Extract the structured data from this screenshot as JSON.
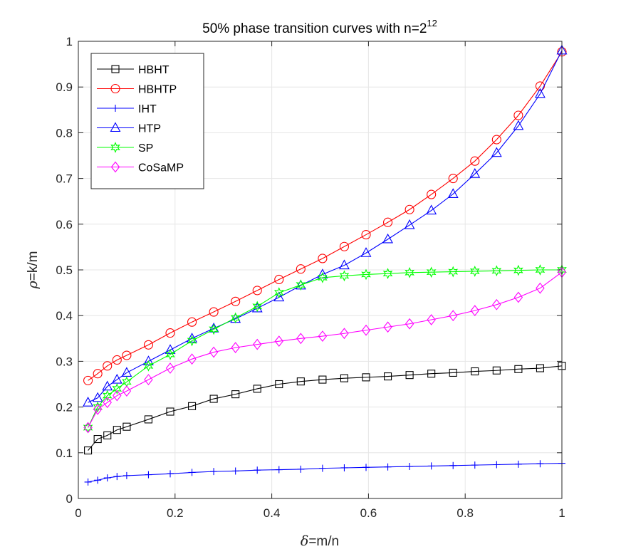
{
  "chart_data": {
    "type": "line",
    "title": "50% phase transition curves with n=2",
    "title_superscript": "12",
    "xlabel_symbol": "δ",
    "xlabel_rest": "=m/n",
    "ylabel_symbol": "ρ",
    "ylabel_rest": "=k/m",
    "xlim": [
      0,
      1
    ],
    "ylim": [
      0,
      1
    ],
    "xticks": [
      0,
      0.2,
      0.4,
      0.6,
      0.8,
      1
    ],
    "xtick_labels": [
      "0",
      "0.2",
      "0.4",
      "0.6",
      "0.8",
      "1"
    ],
    "yticks": [
      0,
      0.1,
      0.2,
      0.3,
      0.4,
      0.5,
      0.6,
      0.7,
      0.8,
      0.9,
      1
    ],
    "ytick_labels": [
      "0",
      "0.1",
      "0.2",
      "0.3",
      "0.4",
      "0.5",
      "0.6",
      "0.7",
      "0.8",
      "0.9",
      "1"
    ],
    "grid": true,
    "legend_position": "top-left",
    "x": [
      0.02,
      0.04,
      0.06,
      0.08,
      0.1,
      0.145,
      0.19,
      0.235,
      0.28,
      0.325,
      0.37,
      0.415,
      0.46,
      0.505,
      0.55,
      0.595,
      0.64,
      0.685,
      0.73,
      0.775,
      0.82,
      0.865,
      0.91,
      0.955,
      1.0
    ],
    "series": [
      {
        "name": "HBHT",
        "color": "#000000",
        "marker": "square",
        "values": [
          0.105,
          0.13,
          0.138,
          0.15,
          0.157,
          0.173,
          0.19,
          0.202,
          0.218,
          0.228,
          0.24,
          0.25,
          0.256,
          0.26,
          0.263,
          0.265,
          0.267,
          0.27,
          0.273,
          0.275,
          0.278,
          0.28,
          0.283,
          0.285,
          0.29
        ]
      },
      {
        "name": "HBHTP",
        "color": "#ff0000",
        "marker": "circle",
        "values": [
          0.258,
          0.273,
          0.29,
          0.303,
          0.313,
          0.336,
          0.362,
          0.386,
          0.408,
          0.431,
          0.455,
          0.479,
          0.502,
          0.525,
          0.551,
          0.577,
          0.604,
          0.632,
          0.665,
          0.7,
          0.738,
          0.785,
          0.838,
          0.902,
          0.977
        ]
      },
      {
        "name": "IHT",
        "color": "#0000ff",
        "marker": "plus",
        "values": [
          0.036,
          0.04,
          0.045,
          0.048,
          0.05,
          0.052,
          0.054,
          0.057,
          0.059,
          0.06,
          0.062,
          0.063,
          0.064,
          0.066,
          0.067,
          0.068,
          0.069,
          0.07,
          0.071,
          0.072,
          0.073,
          0.074,
          0.075,
          0.076,
          0.077
        ]
      },
      {
        "name": "HTP",
        "color": "#0000ff",
        "marker": "triangle",
        "values": [
          0.21,
          0.22,
          0.245,
          0.26,
          0.275,
          0.3,
          0.325,
          0.35,
          0.372,
          0.393,
          0.416,
          0.44,
          0.466,
          0.49,
          0.51,
          0.537,
          0.567,
          0.598,
          0.63,
          0.666,
          0.71,
          0.756,
          0.815,
          0.885,
          0.98
        ]
      },
      {
        "name": "SP",
        "color": "#00ff00",
        "marker": "star",
        "values": [
          0.155,
          0.2,
          0.225,
          0.24,
          0.255,
          0.29,
          0.315,
          0.345,
          0.37,
          0.395,
          0.42,
          0.45,
          0.467,
          0.483,
          0.487,
          0.49,
          0.492,
          0.494,
          0.495,
          0.496,
          0.497,
          0.498,
          0.499,
          0.5,
          0.5
        ]
      },
      {
        "name": "CoSaMP",
        "color": "#ff00ff",
        "marker": "diamond",
        "values": [
          0.155,
          0.195,
          0.21,
          0.225,
          0.235,
          0.26,
          0.285,
          0.305,
          0.32,
          0.33,
          0.337,
          0.344,
          0.35,
          0.355,
          0.361,
          0.368,
          0.375,
          0.382,
          0.391,
          0.4,
          0.411,
          0.424,
          0.44,
          0.46,
          0.495
        ]
      }
    ]
  }
}
